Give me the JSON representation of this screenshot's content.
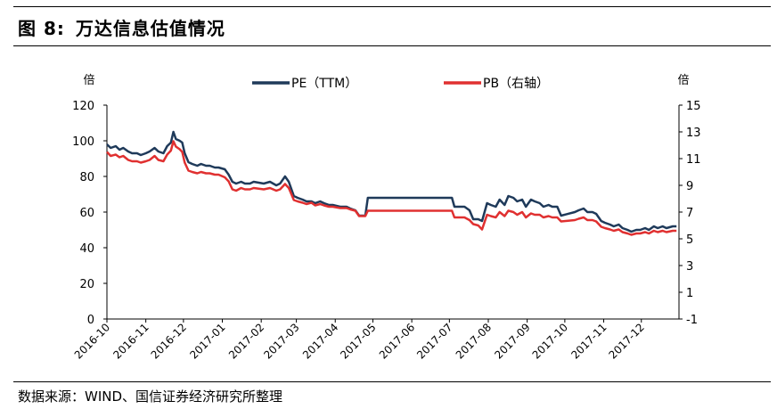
{
  "figure": {
    "label": "图 8:",
    "title": "万达信息估值情况",
    "source": "数据来源：WIND、国信证券经济研究所整理"
  },
  "chart_data": {
    "type": "line",
    "y_left_unit": "倍",
    "y_right_unit": "倍",
    "ylim_left": [
      0,
      120
    ],
    "yticks_left": [
      0,
      20,
      40,
      60,
      80,
      100,
      120
    ],
    "ylim_right": [
      -1,
      15
    ],
    "yticks_right": [
      -1,
      1,
      3,
      5,
      7,
      9,
      11,
      13,
      15
    ],
    "xlim": [
      "2016-10-01",
      "2017-12-31"
    ],
    "xticks": [
      "2016-10",
      "2016-11",
      "2016-12",
      "2017-01",
      "2017-02",
      "2017-03",
      "2017-04",
      "2017-05",
      "2017-06",
      "2017-07",
      "2017-08",
      "2017-09",
      "2017-10",
      "2017-11",
      "2017-12"
    ],
    "legend_position": "top-center",
    "grid": false,
    "colors": {
      "pe": "#1f3a5a",
      "pb": "#e03030"
    },
    "series": [
      {
        "name": "PE（TTM）",
        "axis": "left",
        "points": [
          [
            "2016-10-01",
            98
          ],
          [
            "2016-10-04",
            96
          ],
          [
            "2016-10-08",
            97
          ],
          [
            "2016-10-11",
            95
          ],
          [
            "2016-10-14",
            96
          ],
          [
            "2016-10-18",
            94
          ],
          [
            "2016-10-21",
            93
          ],
          [
            "2016-10-25",
            93
          ],
          [
            "2016-10-28",
            92
          ],
          [
            "2016-11-01",
            93
          ],
          [
            "2016-11-04",
            94
          ],
          [
            "2016-11-08",
            96
          ],
          [
            "2016-11-11",
            94
          ],
          [
            "2016-11-15",
            93
          ],
          [
            "2016-11-18",
            97
          ],
          [
            "2016-11-21",
            99
          ],
          [
            "2016-11-23",
            105
          ],
          [
            "2016-11-25",
            101
          ],
          [
            "2016-11-28",
            100
          ],
          [
            "2016-11-30",
            99
          ],
          [
            "2016-12-02",
            93
          ],
          [
            "2016-12-05",
            88
          ],
          [
            "2016-12-08",
            87
          ],
          [
            "2016-12-12",
            86
          ],
          [
            "2016-12-15",
            87
          ],
          [
            "2016-12-19",
            86
          ],
          [
            "2016-12-22",
            86
          ],
          [
            "2016-12-26",
            85
          ],
          [
            "2016-12-29",
            85
          ],
          [
            "2017-01-03",
            84
          ],
          [
            "2017-01-06",
            81
          ],
          [
            "2017-01-09",
            77
          ],
          [
            "2017-01-12",
            76
          ],
          [
            "2017-01-16",
            77
          ],
          [
            "2017-01-19",
            76
          ],
          [
            "2017-01-23",
            76
          ],
          [
            "2017-01-26",
            77
          ],
          [
            "2017-02-03",
            76
          ],
          [
            "2017-02-08",
            77
          ],
          [
            "2017-02-13",
            75
          ],
          [
            "2017-02-16",
            76
          ],
          [
            "2017-02-20",
            80
          ],
          [
            "2017-02-23",
            77
          ],
          [
            "2017-02-27",
            69
          ],
          [
            "2017-03-02",
            68
          ],
          [
            "2017-03-06",
            67
          ],
          [
            "2017-03-09",
            66
          ],
          [
            "2017-03-13",
            66
          ],
          [
            "2017-03-16",
            65
          ],
          [
            "2017-03-20",
            66
          ],
          [
            "2017-03-23",
            65
          ],
          [
            "2017-03-27",
            64
          ],
          [
            "2017-03-30",
            64
          ],
          [
            "2017-04-05",
            63
          ],
          [
            "2017-04-10",
            63
          ],
          [
            "2017-04-13",
            62
          ],
          [
            "2017-04-17",
            61
          ],
          [
            "2017-04-20",
            58
          ],
          [
            "2017-04-25",
            58
          ],
          [
            "2017-04-27",
            68
          ],
          [
            "2017-05-26",
            68
          ],
          [
            "2017-06-26",
            68
          ],
          [
            "2017-07-03",
            68
          ],
          [
            "2017-07-05",
            63
          ],
          [
            "2017-07-10",
            63
          ],
          [
            "2017-07-13",
            63
          ],
          [
            "2017-07-17",
            61
          ],
          [
            "2017-07-20",
            56
          ],
          [
            "2017-07-24",
            56
          ],
          [
            "2017-07-27",
            55
          ],
          [
            "2017-07-31",
            65
          ],
          [
            "2017-08-03",
            64
          ],
          [
            "2017-08-07",
            63
          ],
          [
            "2017-08-10",
            67
          ],
          [
            "2017-08-14",
            64
          ],
          [
            "2017-08-17",
            69
          ],
          [
            "2017-08-21",
            68
          ],
          [
            "2017-08-24",
            66
          ],
          [
            "2017-08-28",
            67
          ],
          [
            "2017-08-31",
            63
          ],
          [
            "2017-09-04",
            67
          ],
          [
            "2017-09-07",
            66
          ],
          [
            "2017-09-11",
            65
          ],
          [
            "2017-09-14",
            63
          ],
          [
            "2017-09-18",
            64
          ],
          [
            "2017-09-21",
            63
          ],
          [
            "2017-09-25",
            63
          ],
          [
            "2017-09-28",
            58
          ],
          [
            "2017-10-09",
            60
          ],
          [
            "2017-10-12",
            61
          ],
          [
            "2017-10-16",
            62
          ],
          [
            "2017-10-19",
            60
          ],
          [
            "2017-10-23",
            60
          ],
          [
            "2017-10-26",
            59
          ],
          [
            "2017-10-30",
            55
          ],
          [
            "2017-11-02",
            54
          ],
          [
            "2017-11-06",
            53
          ],
          [
            "2017-11-09",
            52
          ],
          [
            "2017-11-13",
            53
          ],
          [
            "2017-11-16",
            51
          ],
          [
            "2017-11-20",
            50
          ],
          [
            "2017-11-23",
            49
          ],
          [
            "2017-11-27",
            50
          ],
          [
            "2017-11-30",
            50
          ],
          [
            "2017-12-04",
            51
          ],
          [
            "2017-12-07",
            50
          ],
          [
            "2017-12-11",
            52
          ],
          [
            "2017-12-14",
            51
          ],
          [
            "2017-12-18",
            52
          ],
          [
            "2017-12-21",
            51
          ],
          [
            "2017-12-26",
            52
          ],
          [
            "2017-12-29",
            52
          ]
        ]
      },
      {
        "name": "PB（右轴）",
        "axis": "right",
        "points": [
          [
            "2016-10-01",
            11.5
          ],
          [
            "2016-10-04",
            11.2
          ],
          [
            "2016-10-08",
            11.3
          ],
          [
            "2016-10-11",
            11.1
          ],
          [
            "2016-10-14",
            11.2
          ],
          [
            "2016-10-18",
            10.9
          ],
          [
            "2016-10-21",
            10.8
          ],
          [
            "2016-10-25",
            10.8
          ],
          [
            "2016-10-28",
            10.7
          ],
          [
            "2016-11-01",
            10.8
          ],
          [
            "2016-11-04",
            10.9
          ],
          [
            "2016-11-08",
            11.2
          ],
          [
            "2016-11-11",
            10.9
          ],
          [
            "2016-11-15",
            10.8
          ],
          [
            "2016-11-18",
            11.3
          ],
          [
            "2016-11-21",
            11.6
          ],
          [
            "2016-11-23",
            12.3
          ],
          [
            "2016-11-25",
            11.9
          ],
          [
            "2016-11-28",
            11.7
          ],
          [
            "2016-11-30",
            11.5
          ],
          [
            "2016-12-02",
            10.7
          ],
          [
            "2016-12-05",
            10.1
          ],
          [
            "2016-12-08",
            10.0
          ],
          [
            "2016-12-12",
            9.9
          ],
          [
            "2016-12-15",
            10.0
          ],
          [
            "2016-12-19",
            9.9
          ],
          [
            "2016-12-22",
            9.9
          ],
          [
            "2016-12-26",
            9.8
          ],
          [
            "2016-12-29",
            9.8
          ],
          [
            "2017-01-03",
            9.6
          ],
          [
            "2017-01-06",
            9.3
          ],
          [
            "2017-01-09",
            8.7
          ],
          [
            "2017-01-12",
            8.6
          ],
          [
            "2017-01-16",
            8.8
          ],
          [
            "2017-01-19",
            8.7
          ],
          [
            "2017-01-23",
            8.7
          ],
          [
            "2017-01-26",
            8.8
          ],
          [
            "2017-02-03",
            8.7
          ],
          [
            "2017-02-08",
            8.8
          ],
          [
            "2017-02-13",
            8.6
          ],
          [
            "2017-02-16",
            8.7
          ],
          [
            "2017-02-20",
            9.1
          ],
          [
            "2017-02-23",
            8.8
          ],
          [
            "2017-02-27",
            7.9
          ],
          [
            "2017-03-02",
            7.8
          ],
          [
            "2017-03-06",
            7.7
          ],
          [
            "2017-03-09",
            7.6
          ],
          [
            "2017-03-13",
            7.7
          ],
          [
            "2017-03-16",
            7.5
          ],
          [
            "2017-03-20",
            7.6
          ],
          [
            "2017-03-23",
            7.5
          ],
          [
            "2017-03-27",
            7.4
          ],
          [
            "2017-03-30",
            7.4
          ],
          [
            "2017-04-05",
            7.3
          ],
          [
            "2017-04-10",
            7.3
          ],
          [
            "2017-04-13",
            7.2
          ],
          [
            "2017-04-17",
            7.1
          ],
          [
            "2017-04-20",
            6.7
          ],
          [
            "2017-04-25",
            6.7
          ],
          [
            "2017-04-27",
            7.1
          ],
          [
            "2017-05-26",
            7.1
          ],
          [
            "2017-06-26",
            7.1
          ],
          [
            "2017-07-03",
            7.1
          ],
          [
            "2017-07-05",
            6.6
          ],
          [
            "2017-07-10",
            6.6
          ],
          [
            "2017-07-13",
            6.6
          ],
          [
            "2017-07-17",
            6.4
          ],
          [
            "2017-07-20",
            6.1
          ],
          [
            "2017-07-24",
            6.0
          ],
          [
            "2017-07-27",
            5.7
          ],
          [
            "2017-07-31",
            6.8
          ],
          [
            "2017-08-03",
            6.7
          ],
          [
            "2017-08-07",
            6.6
          ],
          [
            "2017-08-10",
            7.0
          ],
          [
            "2017-08-14",
            6.7
          ],
          [
            "2017-08-17",
            7.1
          ],
          [
            "2017-08-21",
            7.0
          ],
          [
            "2017-08-24",
            6.8
          ],
          [
            "2017-08-28",
            7.0
          ],
          [
            "2017-08-31",
            6.6
          ],
          [
            "2017-09-04",
            6.9
          ],
          [
            "2017-09-07",
            6.8
          ],
          [
            "2017-09-11",
            6.8
          ],
          [
            "2017-09-14",
            6.6
          ],
          [
            "2017-09-18",
            6.7
          ],
          [
            "2017-09-21",
            6.6
          ],
          [
            "2017-09-25",
            6.6
          ],
          [
            "2017-09-28",
            6.3
          ],
          [
            "2017-10-09",
            6.4
          ],
          [
            "2017-10-12",
            6.5
          ],
          [
            "2017-10-16",
            6.6
          ],
          [
            "2017-10-19",
            6.4
          ],
          [
            "2017-10-23",
            6.4
          ],
          [
            "2017-10-26",
            6.3
          ],
          [
            "2017-10-30",
            5.9
          ],
          [
            "2017-11-02",
            5.8
          ],
          [
            "2017-11-06",
            5.7
          ],
          [
            "2017-11-09",
            5.6
          ],
          [
            "2017-11-13",
            5.7
          ],
          [
            "2017-11-16",
            5.5
          ],
          [
            "2017-11-20",
            5.4
          ],
          [
            "2017-11-23",
            5.3
          ],
          [
            "2017-11-27",
            5.4
          ],
          [
            "2017-11-30",
            5.4
          ],
          [
            "2017-12-04",
            5.5
          ],
          [
            "2017-12-07",
            5.4
          ],
          [
            "2017-12-11",
            5.6
          ],
          [
            "2017-12-14",
            5.5
          ],
          [
            "2017-12-18",
            5.6
          ],
          [
            "2017-12-21",
            5.5
          ],
          [
            "2017-12-26",
            5.6
          ],
          [
            "2017-12-29",
            5.6
          ]
        ]
      }
    ]
  }
}
